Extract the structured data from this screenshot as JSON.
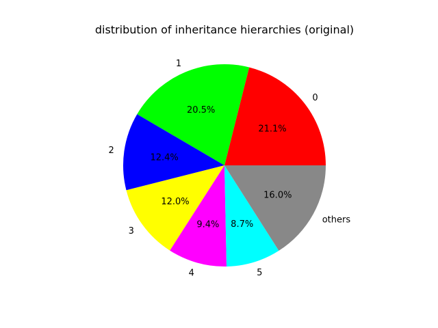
{
  "chart_data": {
    "type": "pie",
    "title": "distribution of inheritance hierarchies (original)",
    "slices": [
      {
        "label": "0",
        "value": 21.1,
        "pct_label": "21.1%",
        "color": "#ff0000"
      },
      {
        "label": "1",
        "value": 20.5,
        "pct_label": "20.5%",
        "color": "#00ff00"
      },
      {
        "label": "2",
        "value": 12.4,
        "pct_label": "12.4%",
        "color": "#0000ff"
      },
      {
        "label": "3",
        "value": 12.0,
        "pct_label": "12.0%",
        "color": "#ffff00"
      },
      {
        "label": "4",
        "value": 9.4,
        "pct_label": "9.4%",
        "color": "#ff00ff"
      },
      {
        "label": "5",
        "value": 8.7,
        "pct_label": "8.7%",
        "color": "#00ffff"
      },
      {
        "label": "others",
        "value": 16.0,
        "pct_label": "16.0%",
        "color": "#888888"
      }
    ],
    "start_angle_deg": 0,
    "direction": "counterclockwise"
  }
}
